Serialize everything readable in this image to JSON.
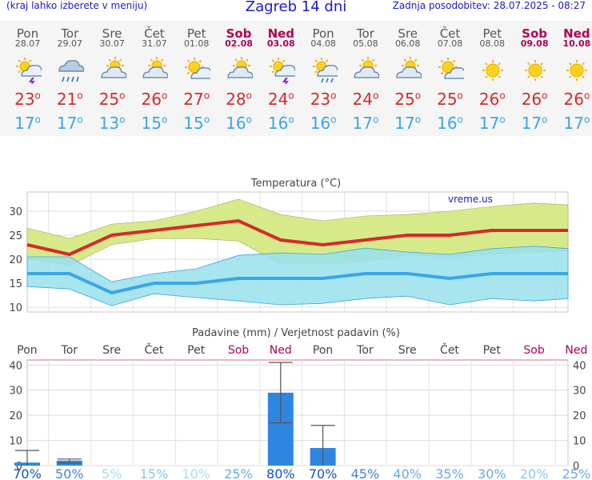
{
  "header": {
    "hint": "(kraj lahko izberete v meniju)",
    "title": "Zagreb 14 dni",
    "updated": "Zadnja posodobitev: 28.07.2025 - 08:27"
  },
  "days": [
    {
      "name": "Pon",
      "date": "28.07",
      "weekend": false,
      "icon": "thunderstorm",
      "max": "23",
      "min": "17"
    },
    {
      "name": "Tor",
      "date": "29.07",
      "weekend": false,
      "icon": "rain-cloud",
      "max": "21",
      "min": "17"
    },
    {
      "name": "Sre",
      "date": "30.07",
      "weekend": false,
      "icon": "partly-cloudy",
      "max": "25",
      "min": "13"
    },
    {
      "name": "Čet",
      "date": "31.07",
      "weekend": false,
      "icon": "partly-cloudy",
      "max": "26",
      "min": "15"
    },
    {
      "name": "Pet",
      "date": "01.08",
      "weekend": false,
      "icon": "partly-sunny",
      "max": "27",
      "min": "15"
    },
    {
      "name": "Sob",
      "date": "02.08",
      "weekend": true,
      "icon": "partly-cloudy",
      "max": "28",
      "min": "16"
    },
    {
      "name": "Ned",
      "date": "03.08",
      "weekend": true,
      "icon": "thunderstorm",
      "max": "24",
      "min": "16"
    },
    {
      "name": "Pon",
      "date": "04.08",
      "weekend": false,
      "icon": "sun-rain",
      "max": "23",
      "min": "16"
    },
    {
      "name": "Tor",
      "date": "05.08",
      "weekend": false,
      "icon": "partly-cloudy",
      "max": "24",
      "min": "17"
    },
    {
      "name": "Sre",
      "date": "06.08",
      "weekend": false,
      "icon": "partly-cloudy",
      "max": "25",
      "min": "17"
    },
    {
      "name": "Čet",
      "date": "07.08",
      "weekend": false,
      "icon": "partly-sunny",
      "max": "25",
      "min": "16"
    },
    {
      "name": "Pet",
      "date": "08.08",
      "weekend": false,
      "icon": "sunny",
      "max": "26",
      "min": "17"
    },
    {
      "name": "Sob",
      "date": "09.08",
      "weekend": true,
      "icon": "sunny",
      "max": "26",
      "min": "17"
    },
    {
      "name": "Ned",
      "date": "10.08",
      "weekend": true,
      "icon": "sunny",
      "max": "26",
      "min": "17"
    }
  ],
  "colors": {
    "max": "#d62a2a",
    "min": "#3aa6e6",
    "title": "#1a1ad0",
    "weekend": "#b0005a",
    "max_band": "#d6ea8a",
    "min_band": "#99e0ec",
    "overlap": "#7fcf8f",
    "bar": "#2f86e0"
  },
  "chart_data": [
    {
      "type": "line",
      "title": "Temperatura (°C)",
      "watermark": "vreme.us",
      "x": [
        "28.07",
        "29.07",
        "30.07",
        "31.07",
        "01.08",
        "02.08",
        "03.08",
        "04.08",
        "05.08",
        "06.08",
        "07.08",
        "08.08",
        "09.08",
        "10.08"
      ],
      "series": [
        {
          "values": [
            23,
            21,
            25,
            26,
            27,
            28,
            24,
            23,
            24,
            25,
            25,
            26,
            26,
            26
          ]
        },
        {
          "values": [
            17,
            17,
            13,
            15,
            15,
            16,
            16,
            16,
            17,
            17,
            16,
            17,
            17,
            17
          ]
        }
      ],
      "bands": [
        {
          "upper": [
            26.5,
            24.3,
            27.3,
            28.0,
            30.0,
            32.5,
            29.3,
            28.0,
            29.0,
            29.3,
            30.0,
            31.0,
            31.7,
            31.3
          ],
          "lower": [
            20.2,
            18.7,
            23.0,
            24.3,
            24.3,
            23.8,
            19.0,
            19.0,
            19.5,
            21.0,
            20.5,
            21.0,
            21.5,
            21.7
          ]
        },
        {
          "upper": [
            20.5,
            20.5,
            15.3,
            17.0,
            18.0,
            20.8,
            21.3,
            21.0,
            22.3,
            21.5,
            21.0,
            22.2,
            22.7,
            22.2
          ],
          "lower": [
            14.3,
            13.8,
            10.3,
            12.8,
            12.0,
            11.3,
            10.5,
            10.8,
            11.8,
            12.3,
            10.5,
            11.8,
            11.3,
            11.8
          ]
        }
      ],
      "yticks": [
        10,
        15,
        20,
        25,
        30
      ],
      "ylim": [
        9,
        34
      ],
      "grid": true
    },
    {
      "type": "bar",
      "title": "Padavine (mm) / Verjetnost padavin (%)",
      "categories": [
        "Pon",
        "Tor",
        "Sre",
        "Čet",
        "Pet",
        "Sob",
        "Ned",
        "Pon",
        "Tor",
        "Sre",
        "Čet",
        "Pet",
        "Sob",
        "Ned"
      ],
      "weekend": [
        false,
        false,
        false,
        false,
        false,
        true,
        true,
        false,
        false,
        false,
        false,
        false,
        true,
        true
      ],
      "values": [
        1.2,
        2.0,
        0,
        0,
        0,
        0,
        29,
        7,
        0,
        0,
        0,
        0,
        0,
        0
      ],
      "error_low": [
        0,
        1.0,
        0,
        0,
        0,
        0,
        17,
        0,
        0,
        0,
        0,
        0,
        0,
        0
      ],
      "error_high": [
        6.0,
        2.6,
        0,
        0,
        0,
        0,
        41,
        16,
        0,
        0,
        0,
        0,
        0,
        0
      ],
      "probability": [
        "70%",
        "50%",
        "5%",
        "15%",
        "10%",
        "25%",
        "80%",
        "70%",
        "45%",
        "40%",
        "35%",
        "30%",
        "20%",
        "25%"
      ],
      "probability_values": [
        70,
        50,
        5,
        15,
        10,
        25,
        80,
        70,
        45,
        40,
        35,
        30,
        20,
        25
      ],
      "yticks": [
        0,
        10,
        20,
        30,
        40
      ],
      "ylim": [
        0,
        42
      ],
      "grid": true
    }
  ]
}
